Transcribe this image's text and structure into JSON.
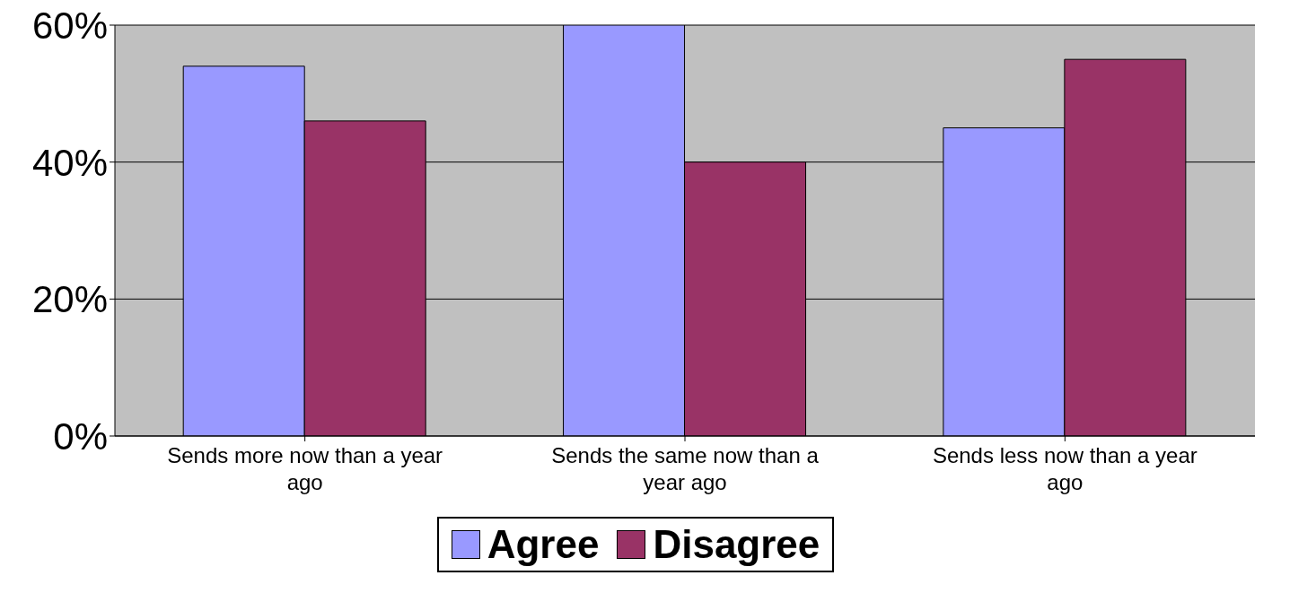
{
  "chart_data": {
    "type": "bar",
    "categories": [
      "Sends more now than a year ago",
      "Sends the same now than a year ago",
      "Sends less now than a year ago"
    ],
    "series": [
      {
        "name": "Agree",
        "color": "#9999ff",
        "values": [
          54,
          60,
          45
        ]
      },
      {
        "name": "Disagree",
        "color": "#993366",
        "values": [
          46,
          40,
          55
        ]
      }
    ],
    "ylim": [
      0,
      60
    ],
    "yticks": [
      {
        "value": 0,
        "label": "0%"
      },
      {
        "value": 20,
        "label": "20%"
      },
      {
        "value": 40,
        "label": "40%"
      },
      {
        "value": 60,
        "label": "60%"
      }
    ],
    "grid": "y",
    "legend": "bottom"
  }
}
